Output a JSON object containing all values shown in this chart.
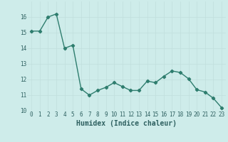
{
  "x": [
    0,
    1,
    2,
    3,
    4,
    5,
    6,
    7,
    8,
    9,
    10,
    11,
    12,
    13,
    14,
    15,
    16,
    17,
    18,
    19,
    20,
    21,
    22,
    23
  ],
  "y": [
    15.1,
    15.1,
    16.0,
    16.2,
    14.0,
    14.2,
    11.4,
    11.0,
    11.3,
    11.5,
    11.8,
    11.55,
    11.3,
    11.3,
    11.9,
    11.8,
    12.2,
    12.55,
    12.45,
    12.05,
    11.35,
    11.2,
    10.8,
    10.2
  ],
  "line_color": "#2e7d6e",
  "marker": "D",
  "marker_size": 2.2,
  "linewidth": 1.0,
  "xlabel": "Humidex (Indice chaleur)",
  "xlim": [
    -0.5,
    23.5
  ],
  "ylim": [
    10,
    17
  ],
  "yticks": [
    10,
    11,
    12,
    13,
    14,
    15,
    16
  ],
  "xtick_labels": [
    "0",
    "1",
    "2",
    "3",
    "4",
    "5",
    "6",
    "7",
    "8",
    "9",
    "10",
    "11",
    "12",
    "13",
    "14",
    "15",
    "16",
    "17",
    "18",
    "19",
    "20",
    "21",
    "22",
    "23"
  ],
  "bg_color": "#ceecea",
  "grid_color": "#c0dedd",
  "label_fontsize": 7,
  "tick_fontsize": 5.5
}
